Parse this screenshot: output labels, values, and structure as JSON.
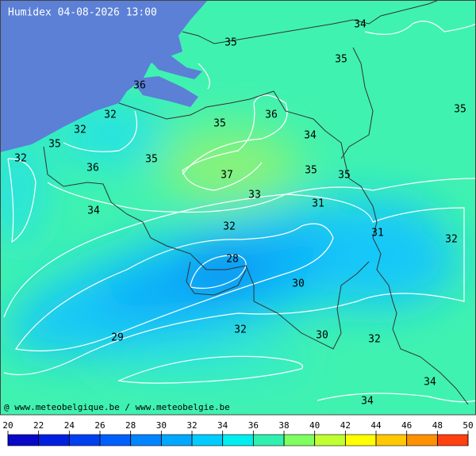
{
  "title": "Humidex 04-08-2026 13:00",
  "credit": "@ www.meteobelgique.be / www.meteobelgie.be",
  "contour_labels": [
    35,
    34,
    35,
    36,
    32,
    32,
    35,
    36,
    34,
    35,
    35,
    32,
    35,
    36,
    37,
    35,
    35,
    33,
    31,
    34,
    32,
    31,
    32,
    28,
    30,
    32,
    29,
    30,
    32,
    34,
    34
  ],
  "colorbar": {
    "ticks": [
      20,
      22,
      24,
      26,
      28,
      30,
      32,
      34,
      36,
      38,
      40,
      42,
      44,
      46,
      48,
      50
    ],
    "colors": [
      "#0808c8",
      "#0020e0",
      "#0040f0",
      "#0060ff",
      "#0084ff",
      "#00a8ff",
      "#00ccff",
      "#00eef0",
      "#30f0b0",
      "#80ff60",
      "#c0ff30",
      "#ffff00",
      "#ffc800",
      "#ff9000",
      "#ff4010"
    ]
  }
}
